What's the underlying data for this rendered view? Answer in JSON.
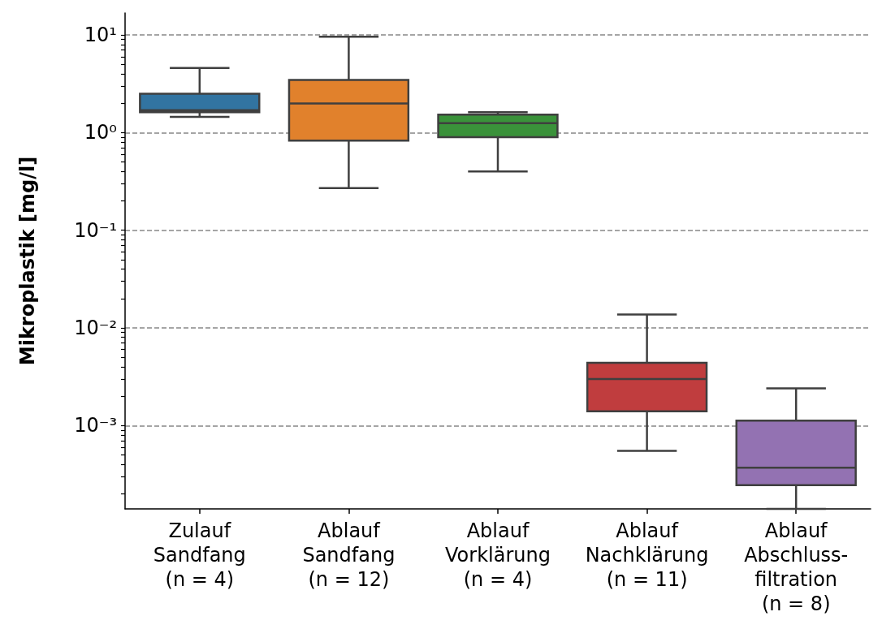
{
  "chart_data": {
    "type": "box",
    "ylabel": "Mikroplastik [mg/l]",
    "log": true,
    "grid": "y",
    "categories": [
      "Zulauf\nSandfang\n(n = 4)",
      "Ablauf\nSandfang\n(n = 12)",
      "Ablauf\nVorklärung\n(n = 4)",
      "Ablauf\nNachklärung\n(n = 11)",
      "Ablauf\nAbschluss-\nfiltration\n(n = 8)"
    ],
    "colors": [
      "#3274a1",
      "#e1812c",
      "#3a923a",
      "#c03d3e",
      "#9372b2"
    ],
    "boxes": [
      {
        "low": 1.45,
        "q1": 1.62,
        "median": 1.7,
        "q3": 2.5,
        "high": 4.6
      },
      {
        "low": 0.27,
        "q1": 0.83,
        "median": 1.99,
        "q3": 3.46,
        "high": 9.6
      },
      {
        "low": 0.4,
        "q1": 0.9,
        "median": 1.25,
        "q3": 1.53,
        "high": 1.62
      },
      {
        "low": 0.00055,
        "q1": 0.0014,
        "median": 0.003,
        "q3": 0.0044,
        "high": 0.0137
      },
      {
        "low": 0.00014,
        "q1": 0.000245,
        "median": 0.00037,
        "q3": 0.00112,
        "high": 0.0024
      }
    ],
    "ylim": [
      0.00014,
      16.8
    ],
    "yticks": [
      {
        "value": 0.0002,
        "label": null
      },
      {
        "value": 0.0003,
        "label": null
      },
      {
        "value": 0.0004,
        "label": null
      },
      {
        "value": 0.0005,
        "label": null
      },
      {
        "value": 0.0006,
        "label": null
      },
      {
        "value": 0.0007,
        "label": null
      },
      {
        "value": 0.0008,
        "label": null
      },
      {
        "value": 0.0009,
        "label": null
      },
      {
        "value": 0.001,
        "label": "10⁻³"
      },
      {
        "value": 0.002,
        "label": null
      },
      {
        "value": 0.003,
        "label": null
      },
      {
        "value": 0.004,
        "label": null
      },
      {
        "value": 0.005,
        "label": null
      },
      {
        "value": 0.006,
        "label": null
      },
      {
        "value": 0.007,
        "label": null
      },
      {
        "value": 0.008,
        "label": null
      },
      {
        "value": 0.009,
        "label": null
      },
      {
        "value": 0.01,
        "label": "10⁻²"
      },
      {
        "value": 0.02,
        "label": null
      },
      {
        "value": 0.03,
        "label": null
      },
      {
        "value": 0.04,
        "label": null
      },
      {
        "value": 0.05,
        "label": null
      },
      {
        "value": 0.06,
        "label": null
      },
      {
        "value": 0.07,
        "label": null
      },
      {
        "value": 0.08,
        "label": null
      },
      {
        "value": 0.09,
        "label": null
      },
      {
        "value": 0.1,
        "label": "10⁻¹"
      },
      {
        "value": 0.2,
        "label": null
      },
      {
        "value": 0.3,
        "label": null
      },
      {
        "value": 0.4,
        "label": null
      },
      {
        "value": 0.5,
        "label": null
      },
      {
        "value": 0.6,
        "label": null
      },
      {
        "value": 0.7,
        "label": null
      },
      {
        "value": 0.8,
        "label": null
      },
      {
        "value": 0.9,
        "label": null
      },
      {
        "value": 1,
        "label": "10⁰"
      },
      {
        "value": 2,
        "label": null
      },
      {
        "value": 3,
        "label": null
      },
      {
        "value": 4,
        "label": null
      },
      {
        "value": 5,
        "label": null
      },
      {
        "value": 6,
        "label": null
      },
      {
        "value": 7,
        "label": null
      },
      {
        "value": 8,
        "label": null
      },
      {
        "value": 9,
        "label": null
      },
      {
        "value": 10,
        "label": "10¹"
      }
    ]
  }
}
